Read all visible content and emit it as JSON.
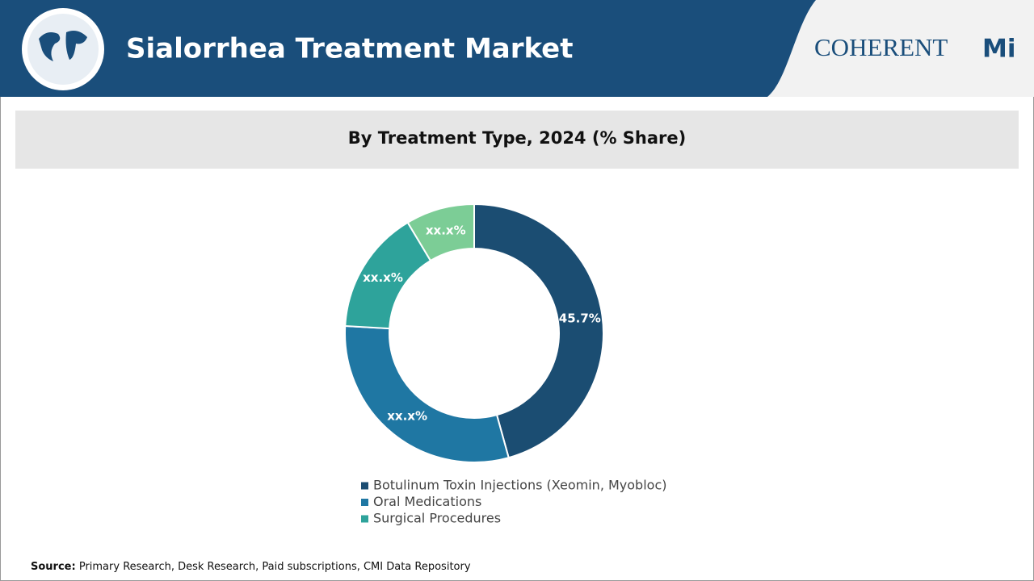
{
  "header": {
    "title": "Sialorrhea Treatment Market",
    "logo_left": "COHERENT",
    "logo_right": "Mi"
  },
  "chart_data": {
    "type": "donut",
    "title": "By Treatment Type, 2024 (% Share)",
    "categories": [
      "Botulinum Toxin Injections (Xeomin, Myobloc)",
      "Oral Medications",
      "Surgical Procedures",
      null
    ],
    "values": [
      45.7,
      30.2,
      15.5,
      8.6
    ],
    "value_labels": [
      "45.7%",
      "xx.x%",
      "xx.x%",
      "xx.x%"
    ],
    "colors": [
      "#1b4d72",
      "#1f77a3",
      "#2ea39b",
      "#7ccd96"
    ]
  },
  "source": {
    "label": "Source:",
    "text": "Primary Research, Desk Research, Paid subscriptions, CMI Data Repository"
  }
}
